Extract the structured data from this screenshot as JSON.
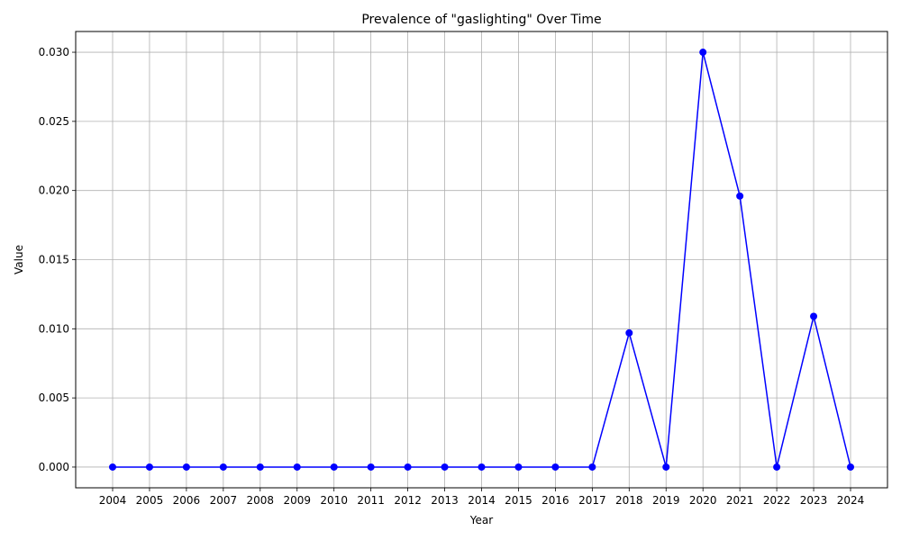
{
  "chart_data": {
    "type": "line",
    "title": "Prevalence of \"gaslighting\" Over Time",
    "xlabel": "Year",
    "ylabel": "Value",
    "x": [
      "2004",
      "2005",
      "2006",
      "2007",
      "2008",
      "2009",
      "2010",
      "2011",
      "2012",
      "2013",
      "2014",
      "2015",
      "2016",
      "2017",
      "2018",
      "2019",
      "2020",
      "2021",
      "2022",
      "2023",
      "2024"
    ],
    "series": [
      {
        "values": [
          0,
          0,
          0,
          0,
          0,
          0,
          0,
          0,
          0,
          0,
          0,
          0,
          0,
          0,
          0.0097,
          0,
          0.03,
          0.0196,
          0,
          0.0109,
          0
        ],
        "color": "#0000ff",
        "marker": "circle"
      }
    ],
    "ylim": [
      -0.0015,
      0.0315
    ],
    "yticks": [
      "0.000",
      "0.005",
      "0.010",
      "0.015",
      "0.020",
      "0.025",
      "0.030"
    ],
    "grid": true,
    "legend": "none"
  }
}
